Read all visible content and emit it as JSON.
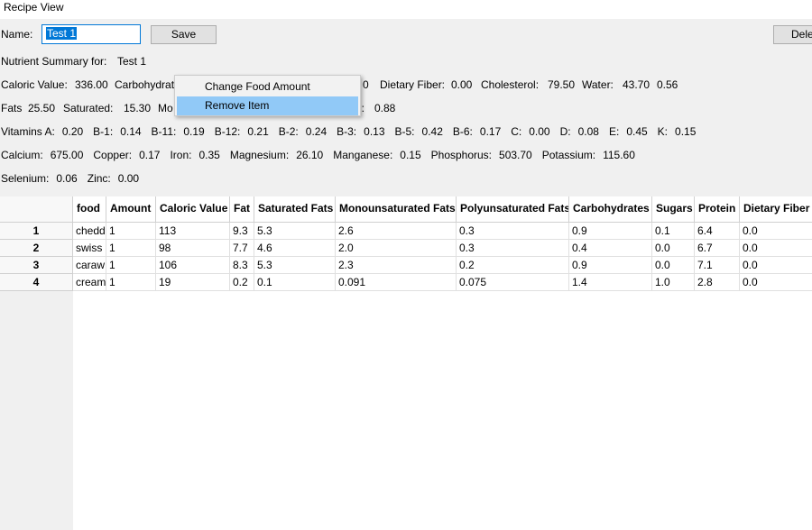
{
  "window": {
    "title": "Recipe View"
  },
  "form": {
    "name_label": "Name:",
    "name_value": "Test 1",
    "save_label": "Save",
    "delete_label": "Dele"
  },
  "summary": {
    "header_label": "Nutrient Summary for:",
    "header_value": "Test 1",
    "row1": [
      {
        "label": "Caloric Value:",
        "value": "336.00"
      },
      {
        "label": "Carbohydrat",
        "value": ""
      },
      {
        "label": "",
        "value": "0"
      },
      {
        "label": "Dietary Fiber:",
        "value": "0.00"
      },
      {
        "label": "Cholesterol:",
        "value": "79.50"
      },
      {
        "label": "Water:",
        "value": "43.70"
      },
      {
        "label": "",
        "value": "0.56"
      }
    ],
    "row2": [
      {
        "label": "Fats",
        "value": "25.50"
      },
      {
        "label": "Saturated:",
        "value": "15.30"
      },
      {
        "label": "Mo",
        "value": ""
      },
      {
        "label": "l:",
        "value": "0.88"
      }
    ],
    "vitamins": [
      {
        "label": "Vitamins   A:",
        "value": "0.20"
      },
      {
        "label": "B-1:",
        "value": "0.14"
      },
      {
        "label": "B-11:",
        "value": "0.19"
      },
      {
        "label": "B-12:",
        "value": "0.21"
      },
      {
        "label": "B-2:",
        "value": "0.24"
      },
      {
        "label": "B-3:",
        "value": "0.13"
      },
      {
        "label": "B-5:",
        "value": "0.42"
      },
      {
        "label": "B-6:",
        "value": "0.17"
      },
      {
        "label": "C:",
        "value": "0.00"
      },
      {
        "label": "D:",
        "value": "0.08"
      },
      {
        "label": "E:",
        "value": "0.45"
      },
      {
        "label": "K:",
        "value": "0.15"
      }
    ],
    "minerals": [
      {
        "label": "Calcium:",
        "value": "675.00"
      },
      {
        "label": "Copper:",
        "value": "0.17"
      },
      {
        "label": "Iron:",
        "value": "0.35"
      },
      {
        "label": "Magnesium:",
        "value": "26.10"
      },
      {
        "label": "Manganese:",
        "value": "0.15"
      },
      {
        "label": "Phosphorus:",
        "value": "503.70"
      },
      {
        "label": "Potassium:",
        "value": "115.60"
      }
    ],
    "trace": [
      {
        "label": "Selenium:",
        "value": "0.06"
      },
      {
        "label": "Zinc:",
        "value": "0.00"
      }
    ]
  },
  "context_menu": {
    "items": [
      "Change Food Amount",
      "Remove Item"
    ],
    "highlighted": "Remove Item"
  },
  "table": {
    "columns": [
      "food",
      "Amount",
      "Caloric Value",
      "Fat",
      "Saturated Fats",
      "Monounsaturated Fats",
      "Polyunsaturated Fats",
      "Carbohydrates",
      "Sugars",
      "Protein",
      "Dietary Fiber"
    ],
    "row_headers": [
      "1",
      "2",
      "3",
      "4"
    ],
    "rows": [
      [
        "chedd",
        "1",
        "113",
        "9.3",
        "5.3",
        "2.6",
        "0.3",
        "0.9",
        "0.1",
        "6.4",
        "0.0"
      ],
      [
        "swiss",
        "1",
        "98",
        "7.7",
        "4.6",
        "2.0",
        "0.3",
        "0.4",
        "0.0",
        "6.7",
        "0.0"
      ],
      [
        "caraw",
        "1",
        "106",
        "8.3",
        "5.3",
        "2.3",
        "0.2",
        "0.9",
        "0.0",
        "7.1",
        "0.0"
      ],
      [
        "cream",
        "1",
        "19",
        "0.2",
        "0.1",
        "0.091",
        "0.075",
        "1.4",
        "1.0",
        "2.8",
        "0.0"
      ]
    ]
  }
}
